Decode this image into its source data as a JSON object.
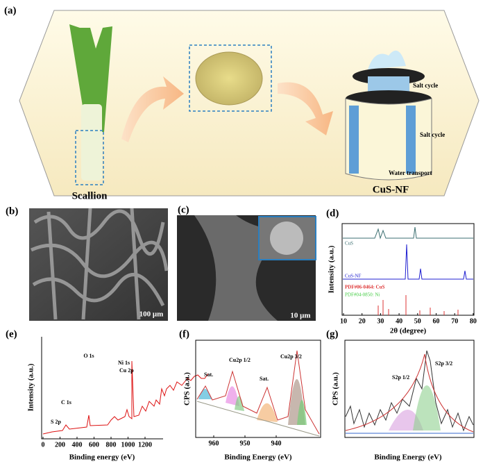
{
  "panel_a": {
    "label": "(a)",
    "scallion": "Scallion",
    "device": "CuS-NF",
    "salt_cycle_top": "Salt cycle",
    "salt_cycle_side": "Salt cycle",
    "water_transport": "Water transport"
  },
  "panel_b": {
    "label": "(b)",
    "scale_bar": "100 μm"
  },
  "panel_c": {
    "label": "(c)",
    "scale_bar": "10 μm"
  },
  "panel_d": {
    "label": "(d)",
    "y_label": "Intensity (a.u.)",
    "x_label": "2θ (degree)",
    "xticks": [
      10,
      20,
      30,
      40,
      50,
      60,
      70,
      80
    ],
    "legend": [
      "CuS",
      "CuS-NF",
      "PDF#06-0464: CuS",
      "PDF#04-0850: Ni"
    ]
  },
  "panel_e": {
    "label": "(e)",
    "y_label": "Intensity (a.u.)",
    "x_label": "Binding energy (eV)",
    "xticks": [
      0,
      200,
      400,
      600,
      800,
      1000,
      1200
    ],
    "peaks": [
      "O 1s",
      "Ni 1s",
      "Cu 2p",
      "C 1s",
      "S 2p"
    ]
  },
  "panel_f": {
    "label": "(f)",
    "y_label": "CPS (a.u.)",
    "x_label": "Binding Energy (eV)",
    "xticks": [
      960,
      950,
      940
    ],
    "peaks": [
      "Sat.",
      "Cu2p 1/2",
      "Sat.",
      "Cu2p 3/2"
    ]
  },
  "panel_g": {
    "label": "(g)",
    "y_label": "CPS (a.u.)",
    "x_label": "Binding Energy (eV)",
    "peaks": [
      "S2p 1/2",
      "S2p 3/2"
    ]
  }
}
